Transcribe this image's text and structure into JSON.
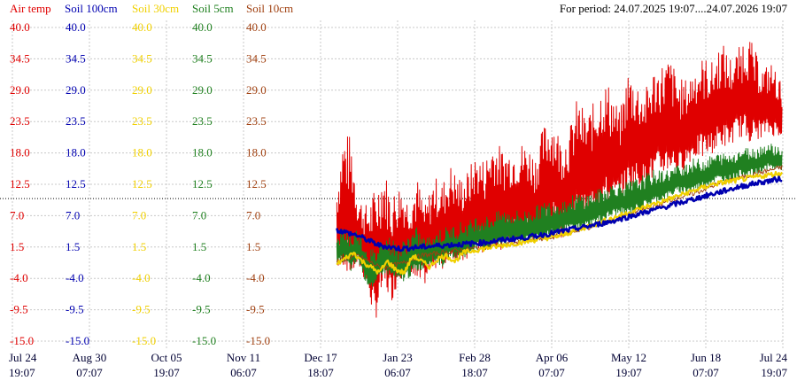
{
  "period_label": "For period: 24.07.2025 19:07....24.07.2026 19:07",
  "colors": {
    "air_temp": "#e00000",
    "soil_100cm": "#0000b0",
    "soil_30cm": "#f0d000",
    "soil_5cm": "#208020",
    "soil_10cm": "#a04010",
    "grid": "#c8c8c8",
    "zero_line": "#000000",
    "axis_text": "#000033"
  },
  "chart_data": {
    "type": "line",
    "title": "",
    "xlabel": "",
    "ylabel": "",
    "ylim": [
      -15.0,
      40.0
    ],
    "grid": true,
    "legend_placement": "top-left",
    "dashed_reference_y": 10.0,
    "y_ticks": [
      "40.0",
      "34.5",
      "29.0",
      "23.5",
      "18.0",
      "12.5",
      "7.0",
      "1.5",
      "-4.0",
      "-9.5",
      "-15.0"
    ],
    "x_ticks": [
      {
        "date": "Jul 24",
        "time": "19:07"
      },
      {
        "date": "Aug 30",
        "time": "07:07"
      },
      {
        "date": "Oct 05",
        "time": "19:07"
      },
      {
        "date": "Nov 11",
        "time": "06:07"
      },
      {
        "date": "Dec 17",
        "time": "18:07"
      },
      {
        "date": "Jan 23",
        "time": "06:07"
      },
      {
        "date": "Feb 28",
        "time": "18:07"
      },
      {
        "date": "Apr 06",
        "time": "07:07"
      },
      {
        "date": "May 12",
        "time": "19:07"
      },
      {
        "date": "Jun 18",
        "time": "07:07"
      },
      {
        "date": "Jul 24",
        "time": "19:07"
      }
    ],
    "series": [
      {
        "name": "Air temp",
        "color": "#e00000",
        "x": [
          "2025-12-25",
          "2025-12-28",
          "2026-01-01",
          "2026-01-04",
          "2026-01-08",
          "2026-01-12",
          "2026-01-16",
          "2026-01-20",
          "2026-01-24",
          "2026-01-28",
          "2026-02-01",
          "2026-02-05",
          "2026-02-09",
          "2026-02-13",
          "2026-02-17",
          "2026-02-21",
          "2026-02-25",
          "2026-03-01",
          "2026-03-05",
          "2026-03-09",
          "2026-03-13",
          "2026-03-17",
          "2026-03-21",
          "2026-03-25",
          "2026-03-29",
          "2026-04-02",
          "2026-04-06",
          "2026-04-10",
          "2026-04-14",
          "2026-04-18",
          "2026-04-22",
          "2026-04-26",
          "2026-04-30",
          "2026-05-04",
          "2026-05-08",
          "2026-05-12",
          "2026-05-16",
          "2026-05-20",
          "2026-05-24",
          "2026-05-28",
          "2026-06-01",
          "2026-06-05",
          "2026-06-09",
          "2026-06-13",
          "2026-06-17",
          "2026-06-21",
          "2026-06-25",
          "2026-06-29",
          "2026-07-03",
          "2026-07-07",
          "2026-07-11",
          "2026-07-15",
          "2026-07-19",
          "2026-07-24"
        ],
        "min": [
          -3,
          -2,
          -4,
          -2,
          -5,
          -12,
          -6,
          -8,
          -4,
          -3,
          -6,
          -5,
          -2,
          -3,
          0,
          -2,
          -1,
          1,
          0,
          2,
          1,
          3,
          2,
          3,
          2,
          4,
          5,
          3,
          5,
          6,
          6,
          8,
          9,
          8,
          10,
          11,
          12,
          12,
          13,
          14,
          15,
          14,
          16,
          17,
          17,
          18,
          19,
          19,
          21,
          20,
          20,
          21,
          21,
          21
        ],
        "max": [
          13,
          22,
          21,
          11,
          9,
          12,
          16,
          11,
          13,
          10,
          14,
          9,
          14,
          13,
          16,
          14,
          15,
          18,
          17,
          21,
          19,
          19,
          20,
          20,
          18,
          23,
          25,
          21,
          22,
          28,
          25,
          27,
          31,
          30,
          25,
          33,
          31,
          29,
          33,
          34,
          35,
          31,
          31,
          34,
          35,
          34,
          38,
          35,
          36,
          40,
          36,
          33,
          34,
          30
        ]
      },
      {
        "name": "Soil 100cm",
        "color": "#0000b0",
        "x": [
          "2025-12-25",
          "2026-01-04",
          "2026-01-14",
          "2026-01-24",
          "2026-02-03",
          "2026-02-13",
          "2026-02-23",
          "2026-03-05",
          "2026-03-15",
          "2026-03-25",
          "2026-04-04",
          "2026-04-14",
          "2026-04-24",
          "2026-05-04",
          "2026-05-14",
          "2026-05-24",
          "2026-06-03",
          "2026-06-13",
          "2026-06-23",
          "2026-07-03",
          "2026-07-13",
          "2026-07-24"
        ],
        "values": [
          4.5,
          3.5,
          1.8,
          1.2,
          1.5,
          1.8,
          2.0,
          2.3,
          2.8,
          3.2,
          3.8,
          4.5,
          5.2,
          6.0,
          7.0,
          8.0,
          9.0,
          10.0,
          11.0,
          12.0,
          12.8,
          13.5
        ]
      },
      {
        "name": "Soil 30cm",
        "color": "#f0d000",
        "x": [
          "2025-12-25",
          "2025-12-29",
          "2026-01-02",
          "2026-01-06",
          "2026-01-10",
          "2026-01-14",
          "2026-01-18",
          "2026-01-22",
          "2026-01-26",
          "2026-01-30",
          "2026-02-03",
          "2026-02-07",
          "2026-02-11",
          "2026-02-15",
          "2026-02-19",
          "2026-02-23",
          "2026-03-01",
          "2026-03-09",
          "2026-03-17",
          "2026-03-25",
          "2026-04-02",
          "2026-04-10",
          "2026-04-18",
          "2026-04-26",
          "2026-05-04",
          "2026-05-12",
          "2026-05-20",
          "2026-05-28",
          "2026-06-05",
          "2026-06-13",
          "2026-06-21",
          "2026-06-29",
          "2026-07-07",
          "2026-07-15",
          "2026-07-24"
        ],
        "values": [
          -1.5,
          -0.5,
          0.5,
          -1,
          -2,
          -3,
          -1,
          -2.5,
          -3,
          0,
          -1,
          -2,
          -0.5,
          0,
          -1,
          0.5,
          1,
          1.5,
          2,
          2.5,
          3,
          3.5,
          4.5,
          5.5,
          6.5,
          7.5,
          8.5,
          9.5,
          10.5,
          11.5,
          12.5,
          13.0,
          13.5,
          14.0,
          14.5
        ]
      },
      {
        "name": "Soil 5cm",
        "color": "#208020",
        "x": [
          "2025-12-25",
          "2025-12-28",
          "2026-01-01",
          "2026-01-04",
          "2026-01-08",
          "2026-01-12",
          "2026-01-16",
          "2026-01-20",
          "2026-01-24",
          "2026-01-28",
          "2026-02-01",
          "2026-02-05",
          "2026-02-09",
          "2026-02-13",
          "2026-02-17",
          "2026-02-21",
          "2026-02-25",
          "2026-03-01",
          "2026-03-07",
          "2026-03-13",
          "2026-03-19",
          "2026-03-25",
          "2026-03-31",
          "2026-04-06",
          "2026-04-12",
          "2026-04-18",
          "2026-04-24",
          "2026-04-30",
          "2026-05-06",
          "2026-05-12",
          "2026-05-18",
          "2026-05-24",
          "2026-05-30",
          "2026-06-05",
          "2026-06-11",
          "2026-06-17",
          "2026-06-23",
          "2026-06-29",
          "2026-07-05",
          "2026-07-11",
          "2026-07-17",
          "2026-07-24"
        ],
        "min": [
          -2,
          -1,
          -3,
          -1,
          -5,
          -6,
          -3,
          -4,
          -5,
          -4,
          -3,
          -2,
          -1,
          -2,
          0,
          -1,
          0,
          1,
          1,
          2,
          2,
          2,
          3,
          3,
          4,
          4,
          5,
          6,
          7,
          7,
          8,
          9,
          10,
          11,
          11,
          12,
          13,
          13,
          14,
          14,
          15,
          15
        ],
        "max": [
          3,
          5,
          4,
          5,
          2,
          1,
          4,
          3,
          2,
          4,
          5,
          3,
          4,
          5,
          5,
          6,
          6,
          7,
          7,
          8,
          8,
          8,
          9,
          10,
          10,
          11,
          11,
          12,
          13,
          13,
          14,
          15,
          15,
          16,
          17,
          17,
          18,
          18,
          19,
          19,
          20,
          19
        ]
      },
      {
        "name": "Soil 10cm",
        "color": "#a04010",
        "x": [
          "2025-12-25",
          "2026-01-04",
          "2026-01-14",
          "2026-01-24",
          "2026-02-03",
          "2026-02-13",
          "2026-02-23",
          "2026-03-05",
          "2026-03-15",
          "2026-03-25",
          "2026-04-04",
          "2026-04-14",
          "2026-04-24",
          "2026-05-04",
          "2026-05-14",
          "2026-05-24",
          "2026-06-03",
          "2026-06-13",
          "2026-06-23",
          "2026-07-03",
          "2026-07-13",
          "2026-07-24"
        ],
        "values": [
          -1,
          0,
          -2,
          -1.5,
          0,
          0.5,
          1,
          1.5,
          2,
          2.5,
          3,
          4,
          5,
          6,
          7.5,
          8.5,
          10,
          11,
          12.5,
          13.5,
          14.5,
          15.5
        ]
      }
    ]
  }
}
